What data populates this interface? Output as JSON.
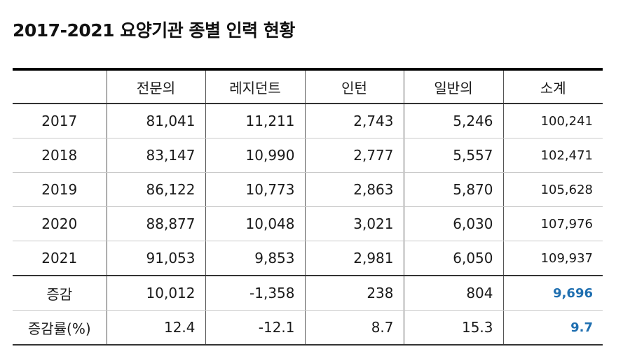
{
  "title": "2017-2021 요양기관 종별 인력 현황",
  "table": {
    "headers": [
      "",
      "전문의",
      "레지던트",
      "인턴",
      "일반의",
      "소계"
    ],
    "rows": [
      {
        "label": "2017",
        "values": [
          "81,041",
          "11,211",
          "2,743",
          "5,246",
          "100,241"
        ]
      },
      {
        "label": "2018",
        "values": [
          "83,147",
          "10,990",
          "2,777",
          "5,557",
          "102,471"
        ]
      },
      {
        "label": "2019",
        "values": [
          "86,122",
          "10,773",
          "2,863",
          "5,870",
          "105,628"
        ]
      },
      {
        "label": "2020",
        "values": [
          "88,877",
          "10,048",
          "3,021",
          "6,030",
          "107,976"
        ]
      },
      {
        "label": "2021",
        "values": [
          "91,053",
          "9,853",
          "2,981",
          "6,050",
          "109,937"
        ]
      }
    ],
    "summary": [
      {
        "label": "증감",
        "values": [
          "10,012",
          "-1,358",
          "238",
          "804",
          "9,696"
        ]
      },
      {
        "label": "증감률(%)",
        "values": [
          "12.4",
          "-12.1",
          "8.7",
          "15.3",
          "9.7"
        ]
      }
    ]
  },
  "colors": {
    "highlight": "#1f6fb0",
    "header_rule": "#000000"
  }
}
